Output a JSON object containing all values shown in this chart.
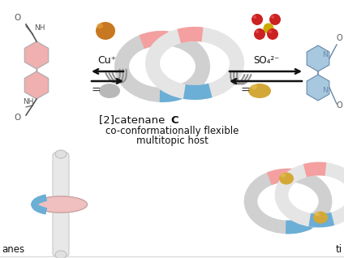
{
  "bg_color": "#ffffff",
  "ring_white": "#e8e8e8",
  "ring_shadow": "#c5c5c5",
  "ring_blue": "#6baed6",
  "ring_pink": "#f4a0a0",
  "ring_edge": "#d0d0d0",
  "cu_color": "#c87820",
  "cu_hi": "#e8a844",
  "gray_color": "#b8b8b8",
  "so4_red": "#cc2222",
  "so4_yellow": "#ccaa00",
  "gold_color": "#d4a838",
  "gold_hi": "#e8c860",
  "struct_pink": "#f0b0b0",
  "struct_blue": "#a8c8e0",
  "struct_line": "#555555",
  "struct_blue_line": "#6688aa",
  "arrow_color": "#111111",
  "text_color": "#111111",
  "motion_color": "#909090",
  "cu_label": "Cu⁺",
  "so4_label": "SO₄²⁻",
  "label_anes": "anes",
  "label_ti": "ti",
  "bottom_line": "#dddddd"
}
